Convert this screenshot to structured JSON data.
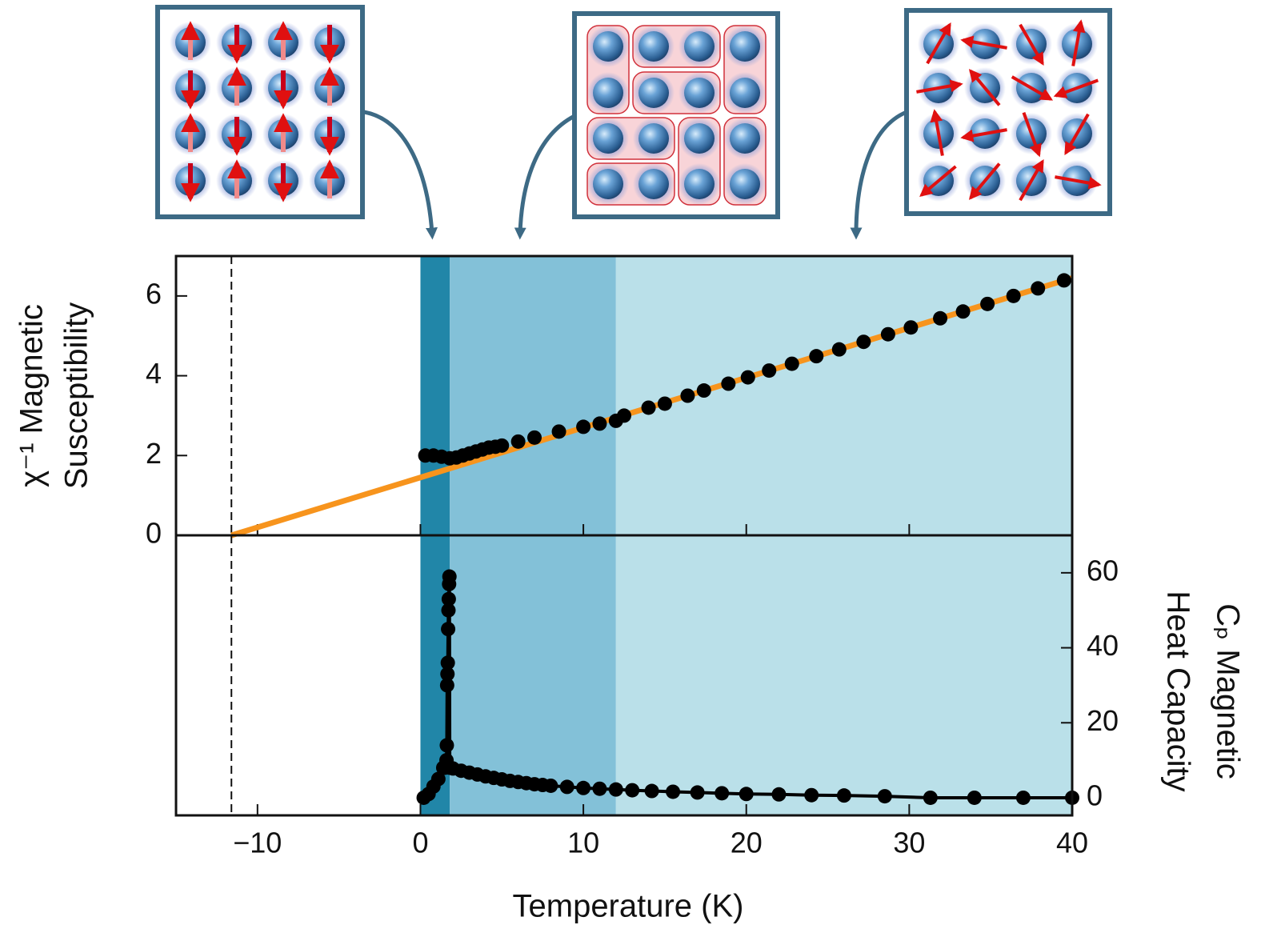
{
  "chart_data": [
    {
      "type": "scatter",
      "ylabel": [
        "χ⁻¹ Magnetic",
        "Susceptibility"
      ],
      "xlim": [
        -15,
        40
      ],
      "ylim": [
        0,
        7
      ],
      "yticks": [
        0,
        2,
        4,
        6
      ],
      "regions": [
        {
          "from": 0,
          "to": 1.8,
          "color": "#2186a8"
        },
        {
          "from": 1.8,
          "to": 12,
          "color": "#83c1d8"
        },
        {
          "from": 12,
          "to": 40,
          "color": "#bae0e9"
        }
      ],
      "vline": -11.6,
      "points": {
        "color": "#000000",
        "x": [
          0.3,
          0.8,
          1.3,
          1.8,
          2.2,
          2.6,
          3.0,
          3.4,
          3.8,
          4.2,
          4.6,
          5.0,
          6.0,
          7.0,
          8.5,
          10.0,
          11.0,
          12.0,
          12.5,
          14.0,
          15.0,
          16.4,
          17.4,
          18.9,
          20.1,
          21.4,
          22.8,
          24.3,
          25.7,
          27.2,
          28.7,
          30.1,
          31.9,
          33.3,
          34.8,
          36.4,
          37.9,
          39.5
        ],
        "values": [
          2.0,
          2.0,
          1.97,
          1.93,
          1.95,
          2.0,
          2.05,
          2.1,
          2.15,
          2.2,
          2.22,
          2.25,
          2.35,
          2.45,
          2.6,
          2.72,
          2.8,
          2.87,
          3.0,
          3.2,
          3.3,
          3.5,
          3.63,
          3.8,
          3.96,
          4.13,
          4.3,
          4.49,
          4.66,
          4.85,
          5.04,
          5.21,
          5.44,
          5.61,
          5.8,
          6.0,
          6.19,
          6.39
        ]
      },
      "fit_line": {
        "color": "#f7941d",
        "x": [
          -11.6,
          40
        ],
        "values": [
          0,
          6.45
        ]
      }
    },
    {
      "type": "line",
      "ylabel": [
        "Cₚ Magnetic",
        "Heat Capacity"
      ],
      "xlabel": "Temperature (K)",
      "xlim": [
        -15,
        40
      ],
      "xticks": [
        {
          "value": -10,
          "label": "−10"
        },
        0,
        10,
        20,
        30,
        40
      ],
      "ylim": [
        -4.7,
        70
      ],
      "yticks": [
        0,
        20,
        40,
        60
      ],
      "regions": [
        {
          "from": 0,
          "to": 1.8,
          "color": "#2186a8"
        },
        {
          "from": 1.8,
          "to": 12,
          "color": "#83c1d8"
        },
        {
          "from": 12,
          "to": 40,
          "color": "#bae0e9"
        }
      ],
      "vline": -11.6,
      "points": {
        "color": "#000000",
        "x": [
          0.2,
          0.5,
          0.8,
          1.1,
          1.4,
          1.5,
          1.6,
          1.62,
          1.64,
          1.66,
          1.68,
          1.7,
          1.72,
          1.74,
          1.76,
          1.78,
          1.8,
          2.0,
          2.5,
          3.0,
          3.5,
          4.0,
          4.5,
          5.0,
          5.5,
          6.0,
          6.5,
          7.0,
          7.5,
          8.0,
          9.0,
          10.0,
          11.0,
          12.0,
          13.0,
          14.2,
          15.5,
          17.0,
          18.5,
          20.0,
          22.0,
          24.0,
          26.0,
          28.5,
          31.3,
          34.0,
          37.0,
          40.0
        ],
        "values": [
          0,
          1,
          3,
          5,
          8,
          8,
          10,
          14,
          30,
          33,
          36,
          45,
          50,
          53,
          57,
          59,
          8,
          7.8,
          7.2,
          6.7,
          6.2,
          5.7,
          5.3,
          4.9,
          4.5,
          4.2,
          3.9,
          3.6,
          3.4,
          3.2,
          2.9,
          2.6,
          2.4,
          2.2,
          2.0,
          1.8,
          1.6,
          1.4,
          1.2,
          1.0,
          0.9,
          0.7,
          0.6,
          0.4,
          0,
          0,
          0,
          0
        ]
      }
    }
  ]
}
